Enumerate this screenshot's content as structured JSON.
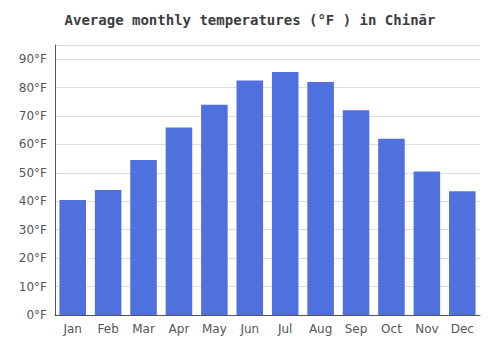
{
  "chart_data": {
    "type": "bar",
    "title": "Average monthly temperatures (°F ) in Chinār",
    "categories": [
      "Jan",
      "Feb",
      "Mar",
      "Apr",
      "May",
      "Jun",
      "Jul",
      "Aug",
      "Sep",
      "Oct",
      "Nov",
      "Dec"
    ],
    "values": [
      40.5,
      44.0,
      54.5,
      66.0,
      74.0,
      82.5,
      85.5,
      82.0,
      72.0,
      62.0,
      50.5,
      43.5
    ],
    "ylim": [
      0,
      95
    ],
    "yticks": [
      {
        "value": 0,
        "label": "0°F"
      },
      {
        "value": 10,
        "label": "10°F"
      },
      {
        "value": 20,
        "label": "20°F"
      },
      {
        "value": 30,
        "label": "30°F"
      },
      {
        "value": 40,
        "label": "40°F"
      },
      {
        "value": 50,
        "label": "50°F"
      },
      {
        "value": 60,
        "label": "60°F"
      },
      {
        "value": 70,
        "label": "70°F"
      },
      {
        "value": 80,
        "label": "80°F"
      },
      {
        "value": 90,
        "label": "90°F"
      }
    ],
    "grid": true
  }
}
